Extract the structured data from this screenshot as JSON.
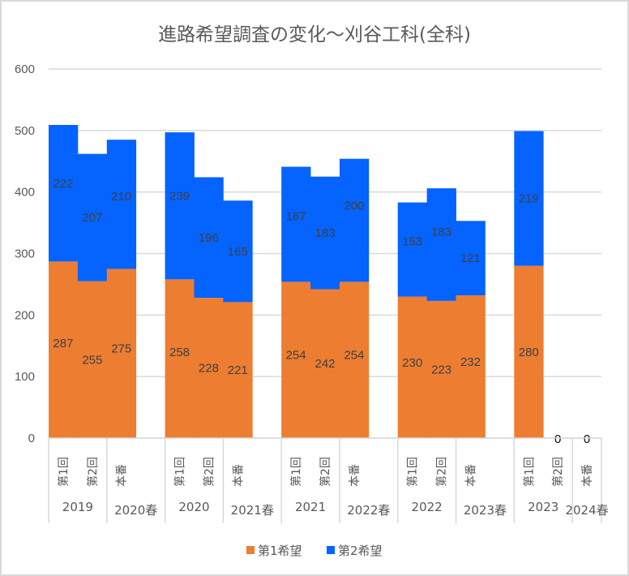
{
  "chart_data": {
    "type": "bar",
    "stacked": true,
    "title": "進路希望調査の変化～刈谷工科(全科)",
    "xlabel": "",
    "ylabel": "",
    "ylim": [
      0,
      600
    ],
    "yticks": [
      0,
      100,
      200,
      300,
      400,
      500,
      600
    ],
    "grid": true,
    "legend_position": "bottom",
    "categories": [
      "第1回",
      "第2回",
      "本番",
      "",
      "第1回",
      "第2回",
      "本番",
      "",
      "第1回",
      "第2回",
      "本番",
      "",
      "第1回",
      "第2回",
      "本番",
      "",
      "第1回",
      "第2回",
      "本番"
    ],
    "groups": [
      {
        "label": "2019",
        "start": 0,
        "span": 2
      },
      {
        "label": "2020春",
        "start": 2,
        "span": 2
      },
      {
        "label": "2020",
        "start": 4,
        "span": 2
      },
      {
        "label": "2021春",
        "start": 6,
        "span": 2
      },
      {
        "label": "2021",
        "start": 8,
        "span": 2
      },
      {
        "label": "2022春",
        "start": 10,
        "span": 2
      },
      {
        "label": "2022",
        "start": 12,
        "span": 2
      },
      {
        "label": "2023春",
        "start": 14,
        "span": 2
      },
      {
        "label": "2023",
        "start": 16,
        "span": 2
      },
      {
        "label": "2024春",
        "start": 18,
        "span": 1
      }
    ],
    "series": [
      {
        "name": "第1希望",
        "color": "#ED7D31",
        "values": [
          287,
          255,
          275,
          null,
          258,
          228,
          221,
          null,
          254,
          242,
          254,
          null,
          230,
          223,
          232,
          null,
          280,
          0,
          0
        ]
      },
      {
        "name": "第2希望",
        "color": "#0563FF",
        "values": [
          222,
          207,
          210,
          null,
          239,
          196,
          165,
          null,
          187,
          183,
          200,
          null,
          153,
          183,
          121,
          null,
          219,
          null,
          null
        ]
      }
    ]
  }
}
